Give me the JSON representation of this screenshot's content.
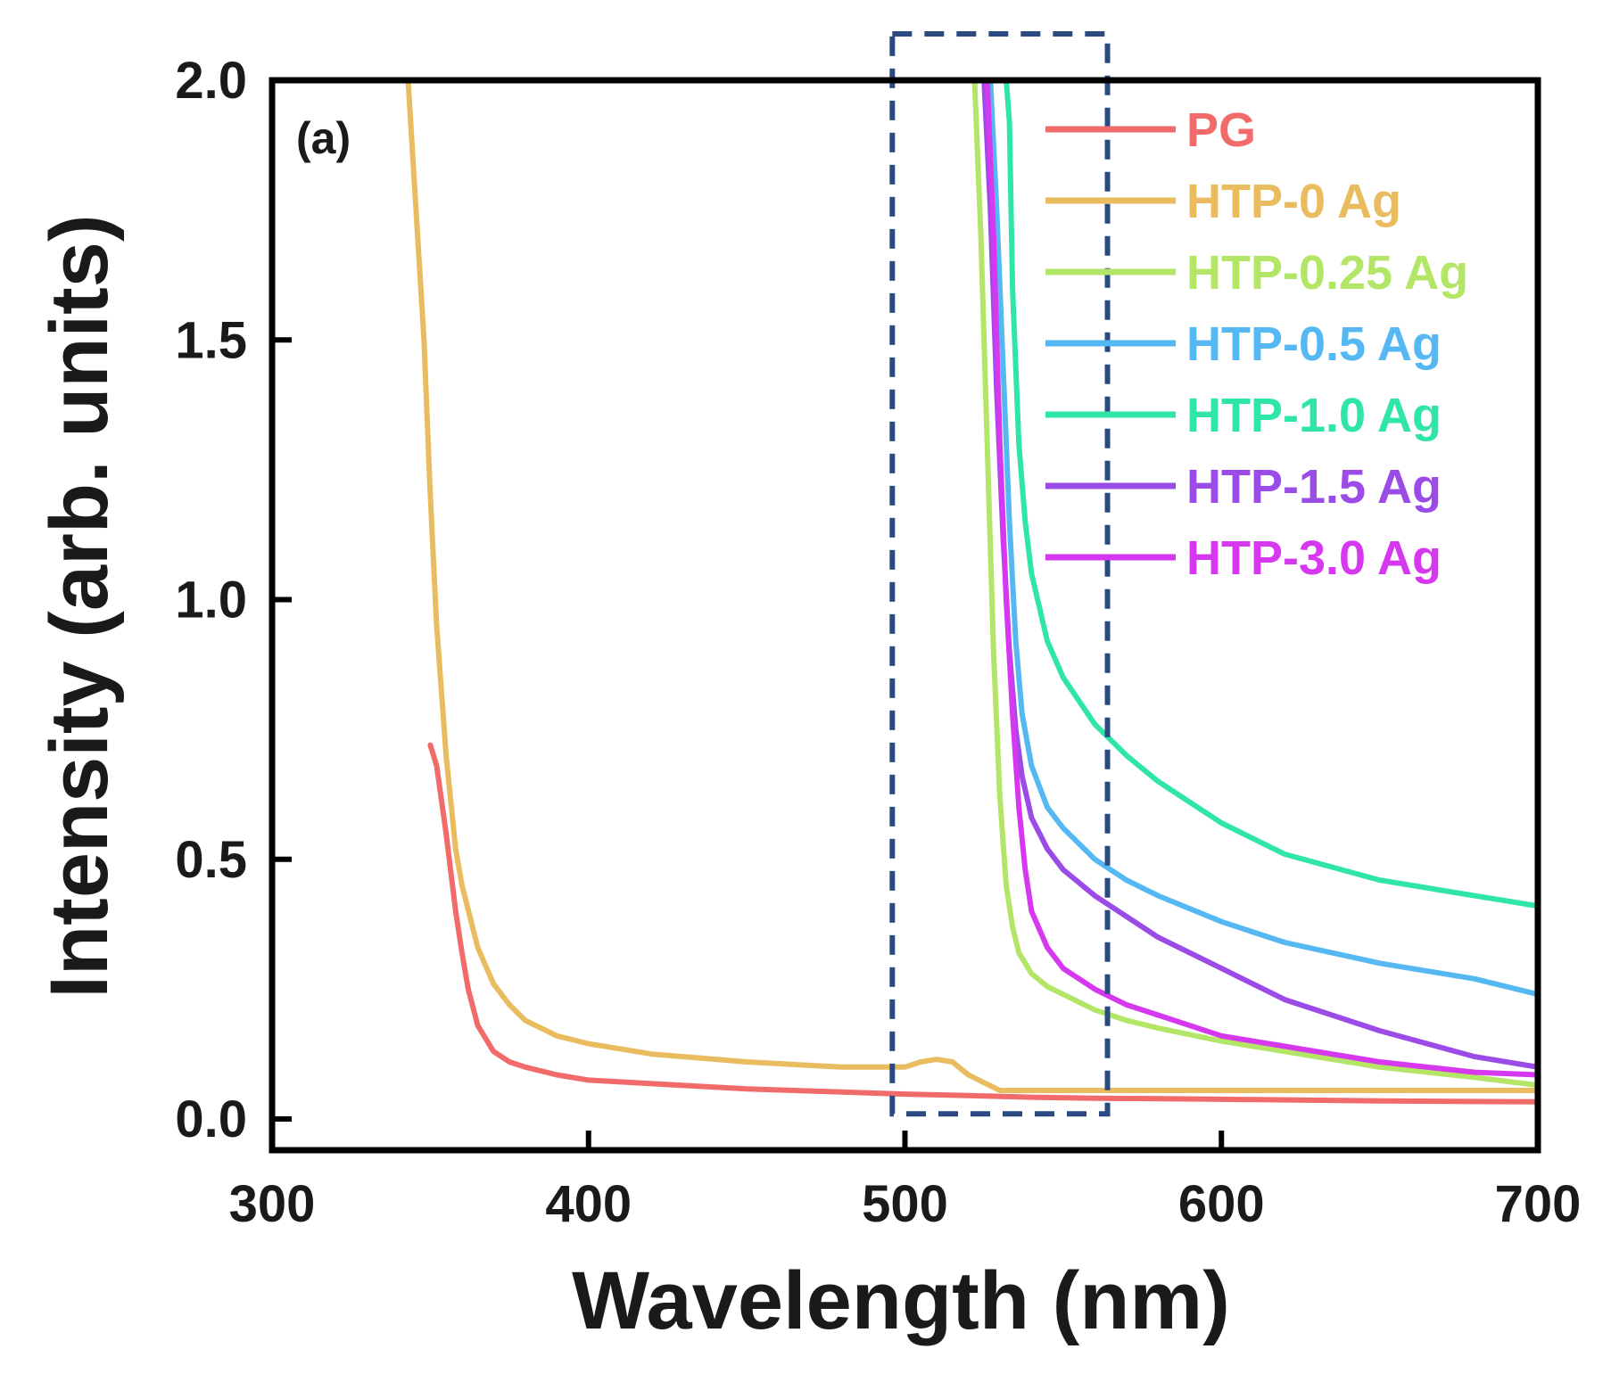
{
  "chart_data": {
    "type": "line",
    "panel_label": "(a)",
    "xlabel": "Wavelength (nm)",
    "ylabel": "Intensity (arb. units)",
    "xlim": [
      300,
      700
    ],
    "ylim": [
      -0.06,
      2.0
    ],
    "xticks": [
      300,
      400,
      500,
      600,
      700
    ],
    "yticks": [
      0.0,
      0.5,
      1.0,
      1.5,
      2.0
    ],
    "xtick_labels": [
      "300",
      "400",
      "500",
      "600",
      "700"
    ],
    "ytick_labels": [
      "0.0",
      "0.5",
      "1.0",
      "1.5",
      "2.0"
    ],
    "highlight_box": {
      "x": [
        496,
        564
      ],
      "y": [
        0.01,
        2.1
      ],
      "style": "dashed",
      "color": "#2b4a82"
    },
    "legend_position": "top-right",
    "series": [
      {
        "name": "PG",
        "color": "#f26b6b",
        "x": [
          350,
          352,
          355,
          358,
          360,
          362,
          365,
          370,
          375,
          380,
          390,
          400,
          420,
          450,
          480,
          500,
          520,
          540,
          560,
          600,
          650,
          700
        ],
        "y": [
          0.72,
          0.68,
          0.55,
          0.4,
          0.32,
          0.25,
          0.18,
          0.13,
          0.11,
          0.1,
          0.085,
          0.075,
          0.068,
          0.058,
          0.052,
          0.048,
          0.045,
          0.042,
          0.04,
          0.038,
          0.035,
          0.033
        ]
      },
      {
        "name": "HTP-0 Ag",
        "color": "#e9bd5f",
        "x": [
          343,
          345,
          348,
          350,
          352,
          355,
          358,
          360,
          365,
          370,
          375,
          380,
          390,
          400,
          420,
          450,
          480,
          500,
          505,
          510,
          515,
          520,
          525,
          530,
          540,
          560,
          600,
          650,
          700
        ],
        "y": [
          2.0,
          1.8,
          1.5,
          1.2,
          0.95,
          0.7,
          0.52,
          0.45,
          0.33,
          0.26,
          0.22,
          0.19,
          0.16,
          0.145,
          0.125,
          0.11,
          0.1,
          0.1,
          0.11,
          0.115,
          0.11,
          0.085,
          0.07,
          0.055,
          0.055,
          0.055,
          0.055,
          0.055,
          0.055
        ]
      },
      {
        "name": "HTP-0.25 Ag",
        "color": "#b3e566",
        "x": [
          522,
          524,
          526,
          528,
          530,
          532,
          534,
          536,
          540,
          545,
          550,
          560,
          570,
          580,
          600,
          620,
          650,
          680,
          700
        ],
        "y": [
          2.0,
          1.7,
          1.3,
          0.9,
          0.62,
          0.45,
          0.37,
          0.32,
          0.28,
          0.255,
          0.24,
          0.21,
          0.19,
          0.175,
          0.15,
          0.13,
          0.1,
          0.08,
          0.065
        ]
      },
      {
        "name": "HTP-0.5 Ag",
        "color": "#55b8f2",
        "x": [
          527,
          529,
          531,
          533,
          535,
          537,
          540,
          545,
          550,
          560,
          570,
          580,
          600,
          620,
          650,
          680,
          700
        ],
        "y": [
          2.0,
          1.75,
          1.45,
          1.15,
          0.92,
          0.78,
          0.68,
          0.6,
          0.56,
          0.5,
          0.46,
          0.43,
          0.38,
          0.34,
          0.3,
          0.27,
          0.24
        ]
      },
      {
        "name": "HTP-1.0 Ag",
        "color": "#2fe6a6",
        "x": [
          532,
          533,
          534,
          536,
          538,
          540,
          545,
          550,
          560,
          570,
          580,
          600,
          620,
          650,
          680,
          700
        ],
        "y": [
          2.0,
          1.92,
          1.6,
          1.3,
          1.15,
          1.05,
          0.92,
          0.85,
          0.76,
          0.7,
          0.65,
          0.57,
          0.51,
          0.46,
          0.43,
          0.41
        ]
      },
      {
        "name": "HTP-1.5 Ag",
        "color": "#9b4be6",
        "x": [
          525,
          527,
          529,
          531,
          533,
          535,
          537,
          540,
          545,
          550,
          560,
          570,
          580,
          600,
          620,
          650,
          680,
          700
        ],
        "y": [
          2.0,
          1.75,
          1.4,
          1.12,
          0.9,
          0.75,
          0.66,
          0.58,
          0.52,
          0.48,
          0.43,
          0.39,
          0.35,
          0.29,
          0.23,
          0.17,
          0.12,
          0.1
        ]
      },
      {
        "name": "HTP-3.0 Ag",
        "color": "#d638f0",
        "x": [
          526,
          528,
          530,
          532,
          534,
          536,
          538,
          540,
          545,
          550,
          560,
          570,
          580,
          600,
          620,
          650,
          680,
          700
        ],
        "y": [
          2.0,
          1.7,
          1.3,
          1.0,
          0.78,
          0.6,
          0.48,
          0.4,
          0.33,
          0.29,
          0.25,
          0.22,
          0.2,
          0.16,
          0.14,
          0.11,
          0.09,
          0.085
        ]
      }
    ]
  }
}
